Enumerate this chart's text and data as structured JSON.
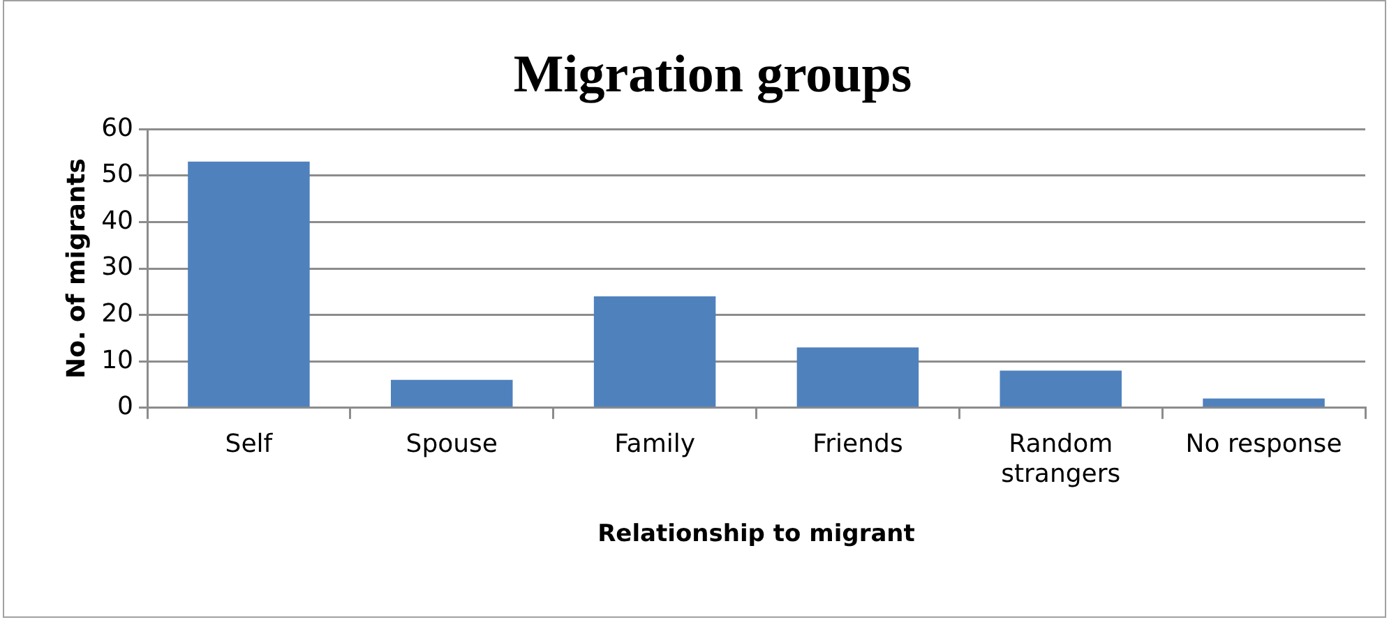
{
  "chart_data": {
    "type": "bar",
    "title": "Migration groups",
    "xlabel": "Relationship to migrant",
    "ylabel": "No. of migrants",
    "categories": [
      "Self",
      "Spouse",
      "Family",
      "Friends",
      "Random strangers",
      "No response"
    ],
    "values": [
      53,
      6,
      24,
      13,
      8,
      2
    ],
    "color": "#4f81bd",
    "ylim": [
      0,
      60
    ],
    "yticks": [
      0,
      10,
      20,
      30,
      40,
      50,
      60
    ],
    "grid": "y",
    "legend": false
  }
}
